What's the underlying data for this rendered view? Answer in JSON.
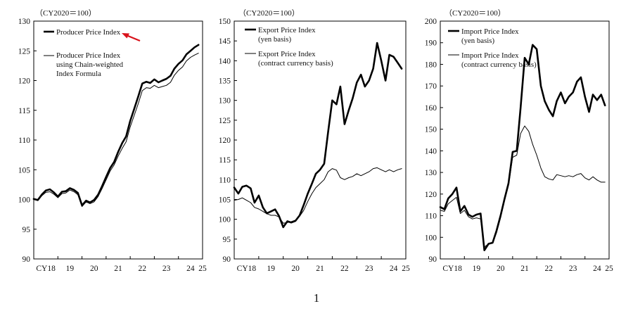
{
  "page_number": "1",
  "chart_data": [
    {
      "type": "line",
      "unit_label": "（CY2020＝100）",
      "ylim": [
        90,
        130
      ],
      "yticks": [
        90,
        95,
        100,
        105,
        110,
        115,
        120,
        125,
        130
      ],
      "x_start": 2018.0,
      "x_end": 2025.0,
      "xticks": [
        {
          "pos": 2018.5,
          "label": "CY18"
        },
        {
          "pos": 2019.5,
          "label": "19"
        },
        {
          "pos": 2020.5,
          "label": "20"
        },
        {
          "pos": 2021.5,
          "label": "21"
        },
        {
          "pos": 2022.5,
          "label": "22"
        },
        {
          "pos": 2023.5,
          "label": "23"
        },
        {
          "pos": 2024.5,
          "label": "24"
        },
        {
          "pos": 2025.0,
          "label": "25"
        }
      ],
      "grid": false,
      "legend_position": "top-left",
      "annotation": "red arrow pointing to Producer Price Index legend entry",
      "annotation_color": "#d9121b",
      "series": [
        {
          "name": "Producer Price Index",
          "style": "bold",
          "x": [
            2018.0,
            2018.17,
            2018.33,
            2018.5,
            2018.67,
            2018.83,
            2019.0,
            2019.17,
            2019.33,
            2019.5,
            2019.67,
            2019.83,
            2020.0,
            2020.17,
            2020.33,
            2020.5,
            2020.67,
            2020.83,
            2021.0,
            2021.17,
            2021.33,
            2021.5,
            2021.67,
            2021.83,
            2022.0,
            2022.17,
            2022.33,
            2022.5,
            2022.67,
            2022.83,
            2023.0,
            2023.17,
            2023.33,
            2023.5,
            2023.67,
            2023.83,
            2024.0,
            2024.17,
            2024.33,
            2024.5,
            2024.67,
            2024.83
          ],
          "values": [
            100.1,
            99.9,
            100.8,
            101.5,
            101.7,
            101.2,
            100.5,
            101.3,
            101.4,
            101.9,
            101.6,
            101.1,
            99.0,
            99.8,
            99.5,
            99.9,
            100.8,
            102.2,
            103.8,
            105.3,
            106.3,
            108.0,
            109.5,
            110.6,
            113.2,
            115.3,
            117.3,
            119.5,
            119.8,
            119.6,
            120.2,
            119.7,
            120.0,
            120.3,
            120.8,
            122.0,
            122.8,
            123.4,
            124.4,
            125.0,
            125.6,
            126.0
          ]
        },
        {
          "name": "Producer Price Index using Chain-weighted Index Formula",
          "style": "thin",
          "x": [
            2018.0,
            2018.17,
            2018.33,
            2018.5,
            2018.67,
            2018.83,
            2019.0,
            2019.17,
            2019.33,
            2019.5,
            2019.67,
            2019.83,
            2020.0,
            2020.17,
            2020.33,
            2020.5,
            2020.67,
            2020.83,
            2021.0,
            2021.17,
            2021.33,
            2021.5,
            2021.67,
            2021.83,
            2022.0,
            2022.17,
            2022.33,
            2022.5,
            2022.67,
            2022.83,
            2023.0,
            2023.17,
            2023.33,
            2023.5,
            2023.67,
            2023.83,
            2024.0,
            2024.17,
            2024.33,
            2024.5,
            2024.67,
            2024.83
          ],
          "values": [
            100.0,
            99.8,
            100.6,
            101.2,
            101.3,
            100.9,
            100.3,
            101.0,
            101.1,
            101.6,
            101.3,
            100.8,
            98.8,
            99.6,
            99.3,
            99.6,
            100.5,
            101.8,
            103.3,
            104.8,
            105.8,
            107.3,
            108.6,
            109.7,
            112.2,
            114.2,
            116.1,
            118.3,
            118.8,
            118.7,
            119.2,
            118.8,
            119.0,
            119.2,
            119.7,
            120.9,
            121.7,
            122.3,
            123.3,
            123.9,
            124.3,
            124.6
          ]
        }
      ]
    },
    {
      "type": "line",
      "unit_label": "（CY2020＝100）",
      "ylim": [
        90,
        150
      ],
      "yticks": [
        90,
        95,
        100,
        105,
        110,
        115,
        120,
        125,
        130,
        135,
        140,
        145,
        150
      ],
      "x_start": 2018.0,
      "x_end": 2025.0,
      "xticks": [
        {
          "pos": 2018.5,
          "label": "CY18"
        },
        {
          "pos": 2019.5,
          "label": "19"
        },
        {
          "pos": 2020.5,
          "label": "20"
        },
        {
          "pos": 2021.5,
          "label": "21"
        },
        {
          "pos": 2022.5,
          "label": "22"
        },
        {
          "pos": 2023.5,
          "label": "23"
        },
        {
          "pos": 2024.5,
          "label": "24"
        },
        {
          "pos": 2025.0,
          "label": "25"
        }
      ],
      "grid": false,
      "legend_position": "top-left",
      "series": [
        {
          "name": "Export Price Index (yen basis)",
          "style": "bold",
          "x": [
            2018.0,
            2018.17,
            2018.33,
            2018.5,
            2018.67,
            2018.83,
            2019.0,
            2019.17,
            2019.33,
            2019.5,
            2019.67,
            2019.83,
            2020.0,
            2020.17,
            2020.33,
            2020.5,
            2020.67,
            2020.83,
            2021.0,
            2021.17,
            2021.33,
            2021.5,
            2021.67,
            2021.83,
            2022.0,
            2022.17,
            2022.33,
            2022.5,
            2022.67,
            2022.83,
            2023.0,
            2023.17,
            2023.33,
            2023.5,
            2023.67,
            2023.83,
            2024.0,
            2024.17,
            2024.33,
            2024.5,
            2024.67,
            2024.83
          ],
          "values": [
            108.0,
            106.5,
            108.2,
            108.5,
            107.8,
            104.2,
            106.0,
            103.0,
            101.5,
            102.0,
            102.5,
            100.8,
            98.0,
            99.5,
            99.2,
            99.6,
            101.0,
            103.5,
            106.5,
            109.0,
            111.5,
            112.5,
            114.0,
            122.0,
            130.0,
            129.0,
            133.5,
            124.0,
            127.5,
            130.5,
            134.5,
            136.5,
            133.5,
            135.0,
            138.0,
            144.5,
            140.0,
            135.0,
            141.5,
            141.0,
            139.5,
            138.0
          ]
        },
        {
          "name": "Export Price Index (contract currency basis)",
          "style": "thin",
          "x": [
            2018.0,
            2018.17,
            2018.33,
            2018.5,
            2018.67,
            2018.83,
            2019.0,
            2019.17,
            2019.33,
            2019.5,
            2019.67,
            2019.83,
            2020.0,
            2020.17,
            2020.33,
            2020.5,
            2020.67,
            2020.83,
            2021.0,
            2021.17,
            2021.33,
            2021.5,
            2021.67,
            2021.83,
            2022.0,
            2022.17,
            2022.33,
            2022.5,
            2022.67,
            2022.83,
            2023.0,
            2023.17,
            2023.33,
            2023.5,
            2023.67,
            2023.83,
            2024.0,
            2024.17,
            2024.33,
            2024.5,
            2024.67,
            2024.83
          ],
          "values": [
            104.8,
            105.0,
            105.4,
            104.8,
            104.2,
            103.0,
            102.6,
            102.0,
            101.4,
            101.0,
            101.0,
            100.6,
            99.0,
            99.2,
            99.4,
            99.8,
            100.8,
            102.2,
            104.5,
            106.5,
            108.0,
            109.0,
            110.0,
            112.0,
            112.8,
            112.4,
            110.5,
            110.0,
            110.5,
            110.8,
            111.5,
            111.0,
            111.5,
            112.0,
            112.8,
            113.0,
            112.5,
            112.0,
            112.5,
            112.0,
            112.5,
            112.8
          ]
        }
      ]
    },
    {
      "type": "line",
      "unit_label": "（CY2020＝100）",
      "ylim": [
        90,
        200
      ],
      "yticks": [
        90,
        100,
        110,
        120,
        130,
        140,
        150,
        160,
        170,
        180,
        190,
        200
      ],
      "x_start": 2018.0,
      "x_end": 2025.0,
      "xticks": [
        {
          "pos": 2018.5,
          "label": "CY18"
        },
        {
          "pos": 2019.5,
          "label": "19"
        },
        {
          "pos": 2020.5,
          "label": "20"
        },
        {
          "pos": 2021.5,
          "label": "21"
        },
        {
          "pos": 2022.5,
          "label": "22"
        },
        {
          "pos": 2023.5,
          "label": "23"
        },
        {
          "pos": 2024.5,
          "label": "24"
        },
        {
          "pos": 2025.0,
          "label": "25"
        }
      ],
      "grid": false,
      "legend_position": "top-left",
      "series": [
        {
          "name": "Import Price Index (yen basis)",
          "style": "bold",
          "x": [
            2018.0,
            2018.17,
            2018.33,
            2018.5,
            2018.67,
            2018.83,
            2019.0,
            2019.17,
            2019.33,
            2019.5,
            2019.67,
            2019.83,
            2020.0,
            2020.17,
            2020.33,
            2020.5,
            2020.67,
            2020.83,
            2021.0,
            2021.17,
            2021.33,
            2021.5,
            2021.67,
            2021.83,
            2022.0,
            2022.17,
            2022.33,
            2022.5,
            2022.67,
            2022.83,
            2023.0,
            2023.17,
            2023.33,
            2023.5,
            2023.67,
            2023.83,
            2024.0,
            2024.17,
            2024.33,
            2024.5,
            2024.67,
            2024.83
          ],
          "values": [
            114.0,
            113.0,
            118.0,
            120.0,
            123.0,
            112.0,
            114.5,
            110.5,
            109.5,
            110.5,
            111.0,
            94.0,
            97.0,
            97.5,
            103.0,
            110.0,
            118.0,
            125.0,
            139.5,
            140.0,
            160.0,
            183.0,
            180.0,
            189.0,
            187.0,
            170.0,
            163.0,
            159.0,
            156.0,
            163.0,
            167.0,
            162.0,
            165.0,
            167.0,
            172.0,
            174.0,
            165.0,
            158.0,
            166.0,
            163.5,
            166.0,
            161.0
          ]
        },
        {
          "name": "Import Price Index (contract currency basis)",
          "style": "thin",
          "x": [
            2018.0,
            2018.17,
            2018.33,
            2018.5,
            2018.67,
            2018.83,
            2019.0,
            2019.17,
            2019.33,
            2019.5,
            2019.67,
            2019.83,
            2020.0,
            2020.17,
            2020.33,
            2020.5,
            2020.67,
            2020.83,
            2021.0,
            2021.17,
            2021.33,
            2021.5,
            2021.67,
            2021.83,
            2022.0,
            2022.17,
            2022.33,
            2022.5,
            2022.67,
            2022.83,
            2023.0,
            2023.17,
            2023.33,
            2023.5,
            2023.67,
            2023.83,
            2024.0,
            2024.17,
            2024.33,
            2024.5,
            2024.67,
            2024.83
          ],
          "values": [
            112.5,
            112.0,
            115.5,
            117.0,
            118.5,
            111.0,
            112.5,
            109.5,
            108.5,
            109.0,
            108.5,
            95.5,
            97.0,
            97.5,
            102.0,
            109.0,
            117.0,
            124.0,
            137.0,
            138.0,
            148.0,
            151.5,
            149.0,
            143.0,
            138.0,
            132.0,
            128.0,
            127.0,
            126.5,
            129.0,
            128.5,
            128.0,
            128.5,
            128.0,
            129.0,
            129.5,
            127.5,
            126.5,
            128.0,
            126.5,
            125.5,
            125.5
          ]
        }
      ]
    }
  ]
}
